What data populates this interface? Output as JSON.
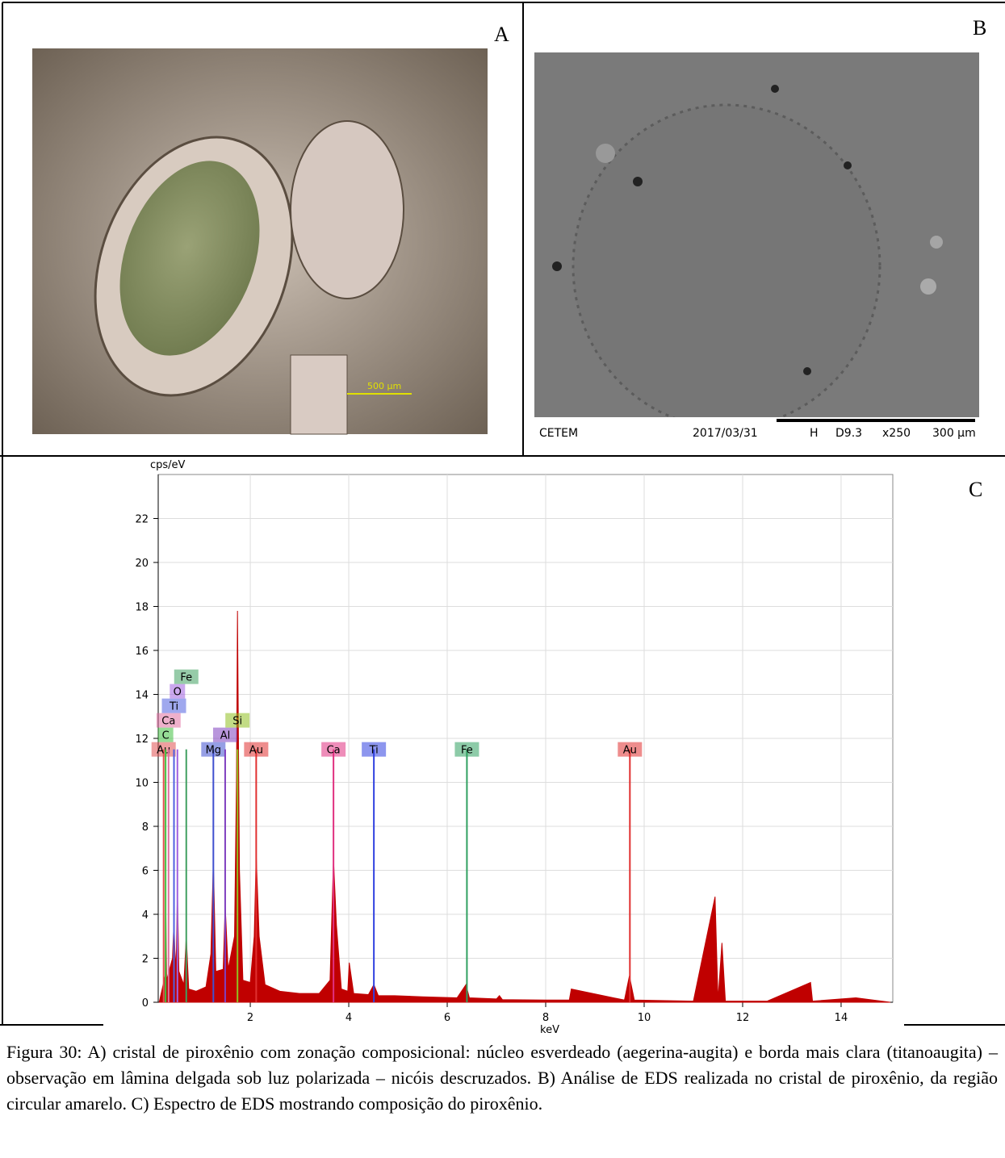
{
  "panels": {
    "a": {
      "letter": "A",
      "scale_label": "500 µm"
    },
    "b": {
      "letter": "B",
      "footer": [
        "CETEM",
        "2017/03/31",
        "H",
        "D9.3",
        "x250",
        "300 µm"
      ]
    },
    "c": {
      "letter": "C"
    }
  },
  "chart_data": {
    "type": "spectrum",
    "y_label": "cps/eV",
    "x_label": "keV",
    "color": "#c00000",
    "xlim": [
      0.13,
      15.05
    ],
    "ylim": [
      0,
      24
    ],
    "xticks": [
      2,
      4,
      6,
      8,
      10,
      12,
      14
    ],
    "yticks": [
      0,
      2,
      4,
      6,
      8,
      10,
      12,
      14,
      16,
      18,
      20,
      22
    ],
    "grid": true,
    "x": [
      0.15,
      0.27,
      0.28,
      0.3,
      0.42,
      0.45,
      0.48,
      0.5,
      0.52,
      0.55,
      0.65,
      0.7,
      0.75,
      0.9,
      1.1,
      1.2,
      1.25,
      1.3,
      1.45,
      1.49,
      1.55,
      1.68,
      1.72,
      1.74,
      1.78,
      1.85,
      2.0,
      2.08,
      2.12,
      2.18,
      2.3,
      2.6,
      3.0,
      3.4,
      3.62,
      3.69,
      3.75,
      3.85,
      3.98,
      4.01,
      4.1,
      4.4,
      4.51,
      4.6,
      4.93,
      5.5,
      6.2,
      6.38,
      6.45,
      7.0,
      7.06,
      7.12,
      8.0,
      8.48,
      8.52,
      9.6,
      9.7,
      9.8,
      11.0,
      11.44,
      11.5,
      11.58,
      11.65,
      12.5,
      13.38,
      13.42,
      14.3,
      15.0
    ],
    "values": [
      0,
      1.2,
      5.2,
      1.0,
      2.0,
      3.7,
      1.5,
      2.4,
      5.1,
      1.4,
      0.8,
      3.0,
      0.6,
      0.5,
      0.7,
      2.2,
      6.4,
      1.4,
      1.5,
      4.4,
      1.5,
      3.0,
      10.2,
      17.8,
      6.0,
      1.0,
      0.9,
      3.0,
      6.7,
      3.0,
      0.8,
      0.5,
      0.4,
      0.4,
      1.0,
      6.5,
      3.5,
      0.6,
      0.5,
      1.8,
      0.4,
      0.35,
      0.8,
      0.3,
      0.3,
      0.25,
      0.2,
      0.8,
      0.2,
      0.15,
      0.3,
      0.12,
      0.1,
      0.1,
      0.6,
      0.1,
      1.2,
      0.1,
      0.05,
      4.8,
      0.1,
      2.7,
      0.05,
      0.05,
      0.9,
      0.05,
      0.2,
      0
    ],
    "markers": [
      {
        "label": "Au",
        "color": "#e05050",
        "x": 0.24,
        "height": 11.5
      },
      {
        "label": "C",
        "color": "#40c040",
        "x": 0.28,
        "height": 11.5
      },
      {
        "label": "Ca",
        "color": "#e070a0",
        "x": 0.34,
        "height": 11.5
      },
      {
        "label": "Ti",
        "color": "#5060e0",
        "x": 0.45,
        "height": 11.5
      },
      {
        "label": "O",
        "color": "#a060e0",
        "x": 0.52,
        "height": 11.5
      },
      {
        "label": "Fe",
        "color": "#40a060",
        "x": 0.7,
        "height": 11.5
      },
      {
        "label": "Mg",
        "color": "#4050d0",
        "x": 1.25,
        "height": 11.5
      },
      {
        "label": "Al",
        "color": "#8040c0",
        "x": 1.49,
        "height": 11.5
      },
      {
        "label": "Si",
        "color": "#90c020",
        "x": 1.74,
        "height": 11.5
      },
      {
        "label": "Au",
        "color": "#e03030",
        "x": 2.12,
        "height": 11.5
      },
      {
        "label": "Ca",
        "color": "#e03080",
        "x": 3.69,
        "height": 11.5
      },
      {
        "label": "Ti",
        "color": "#3040e0",
        "x": 4.51,
        "height": 11.5
      },
      {
        "label": "Fe",
        "color": "#30a060",
        "x": 6.4,
        "height": 11.5
      },
      {
        "label": "Au",
        "color": "#e03030",
        "x": 9.71,
        "height": 11.5
      }
    ]
  },
  "caption": "Figura 30: A) cristal de piroxênio com zonação composicional: núcleo esverdeado (aegerina-augita) e borda mais clara (titanoaugita) – observação em lâmina delgada sob luz polarizada – nicóis descruzados. B) Análise de EDS realizada no cristal de piroxênio, da região circular amarelo. C) Espectro de EDS mostrando composição do piroxênio."
}
